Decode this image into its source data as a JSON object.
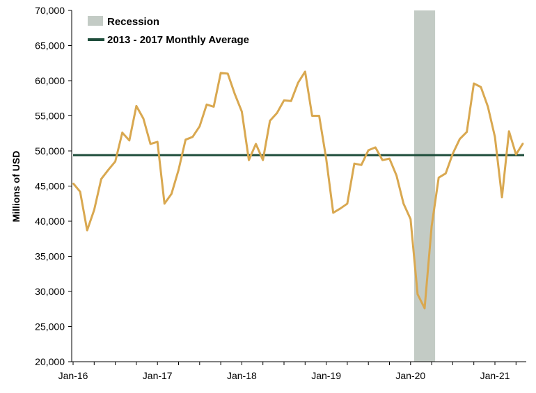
{
  "chart_data": {
    "type": "line",
    "title": "",
    "xlabel": "",
    "ylabel": "Millions of USD",
    "ylim": [
      20000,
      70000
    ],
    "yticks": [
      20000,
      25000,
      30000,
      35000,
      40000,
      45000,
      50000,
      55000,
      60000,
      65000,
      70000
    ],
    "ytick_labels": [
      "20,000",
      "25,000",
      "30,000",
      "35,000",
      "40,000",
      "45,000",
      "50,000",
      "55,000",
      "60,000",
      "65,000",
      "70,000"
    ],
    "xticks": [
      "Jan-16",
      "Jan-17",
      "Jan-18",
      "Jan-19",
      "Jan-20",
      "Jan-21"
    ],
    "grid": false,
    "legend_position": "top-left",
    "legend": [
      {
        "label": "Recession",
        "kind": "band",
        "color": "#c3cbc5"
      },
      {
        "label": "2013 - 2017 Monthly Average",
        "kind": "line",
        "color": "#1e4d3b"
      }
    ],
    "recession": {
      "start": "Feb-20",
      "end": "Apr-20",
      "color": "#c3cbc5"
    },
    "average": {
      "name": "2013 - 2017 Monthly Average",
      "value": 49400,
      "color": "#1e4d3b"
    },
    "series": [
      {
        "color": "#d9a850",
        "x": [
          "Jan-16",
          "Feb-16",
          "Mar-16",
          "Apr-16",
          "May-16",
          "Jun-16",
          "Jul-16",
          "Aug-16",
          "Sep-16",
          "Oct-16",
          "Nov-16",
          "Dec-16",
          "Jan-17",
          "Feb-17",
          "Mar-17",
          "Apr-17",
          "May-17",
          "Jun-17",
          "Jul-17",
          "Aug-17",
          "Sep-17",
          "Oct-17",
          "Nov-17",
          "Dec-17",
          "Jan-18",
          "Feb-18",
          "Mar-18",
          "Apr-18",
          "May-18",
          "Jun-18",
          "Jul-18",
          "Aug-18",
          "Sep-18",
          "Oct-18",
          "Nov-18",
          "Dec-18",
          "Jan-19",
          "Feb-19",
          "Mar-19",
          "Apr-19",
          "May-19",
          "Jun-19",
          "Jul-19",
          "Aug-19",
          "Sep-19",
          "Oct-19",
          "Nov-19",
          "Dec-19",
          "Jan-20",
          "Feb-20",
          "Mar-20",
          "Apr-20",
          "May-20",
          "Jun-20",
          "Jul-20",
          "Aug-20",
          "Sep-20",
          "Oct-20",
          "Nov-20",
          "Dec-20",
          "Jan-21",
          "Feb-21",
          "Mar-21",
          "Apr-21",
          "May-21"
        ],
        "values": [
          45400,
          44200,
          38700,
          41600,
          46000,
          47300,
          48500,
          52600,
          51500,
          56400,
          54600,
          51000,
          51300,
          42500,
          43900,
          47300,
          51600,
          52000,
          53500,
          56600,
          56300,
          61100,
          61000,
          58100,
          55600,
          48700,
          51000,
          48700,
          54300,
          55400,
          57200,
          57100,
          59700,
          61300,
          55000,
          55000,
          48900,
          41200,
          41800,
          42500,
          48200,
          48000,
          50100,
          50500,
          48700,
          48900,
          46500,
          42500,
          40300,
          29600,
          27600,
          39300,
          46200,
          46800,
          49600,
          51700,
          52700,
          59600,
          59100,
          56300,
          52000,
          43400,
          52800,
          49500,
          51100
        ]
      }
    ]
  }
}
